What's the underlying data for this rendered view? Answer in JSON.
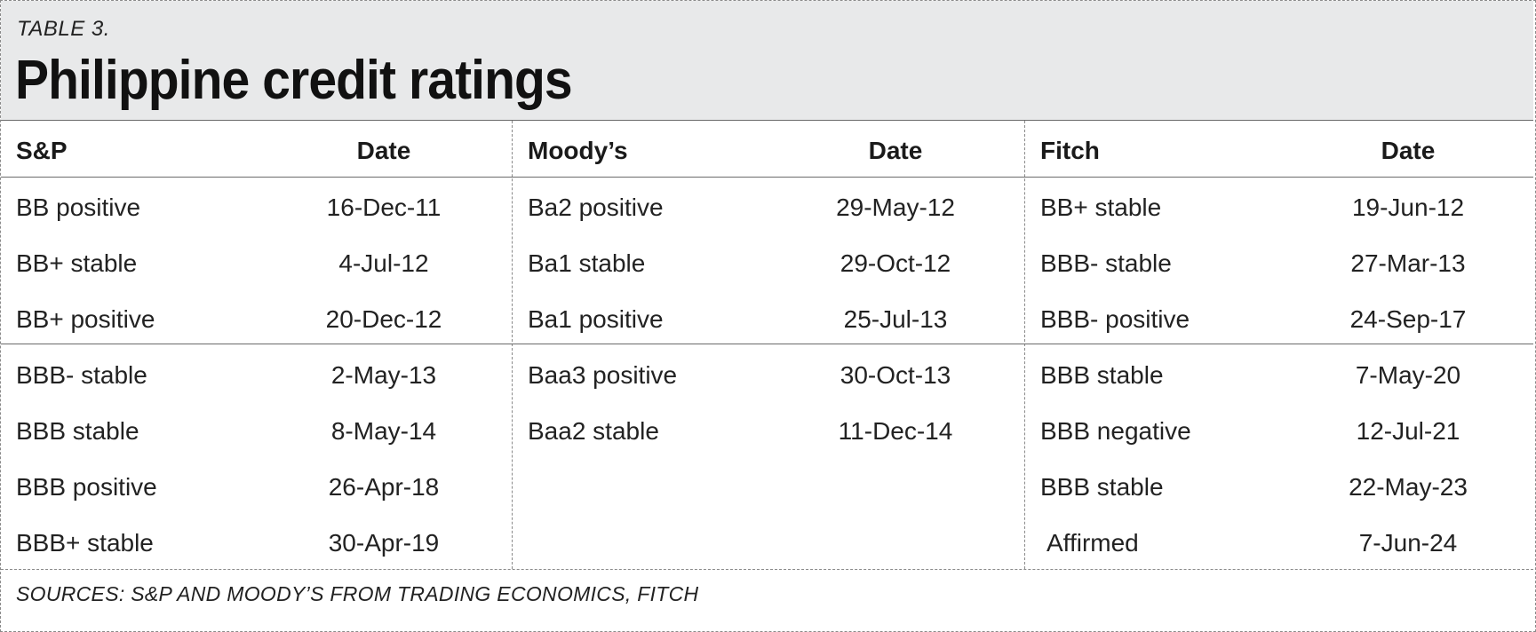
{
  "header": {
    "kicker": "TABLE 3.",
    "title": "Philippine credit ratings"
  },
  "table": {
    "columns": [
      {
        "agency": "S&P",
        "date_header": "Date",
        "rows": [
          {
            "rating": "BB positive",
            "date": "16-Dec-11"
          },
          {
            "rating": "BB+ stable",
            "date": "4-Jul-12"
          },
          {
            "rating": "BB+ positive",
            "date": "20-Dec-12"
          },
          {
            "rating": "BBB- stable",
            "date": "2-May-13"
          },
          {
            "rating": "BBB stable",
            "date": "8-May-14"
          },
          {
            "rating": "BBB positive",
            "date": "26-Apr-18"
          },
          {
            "rating": "BBB+ stable",
            "date": "30-Apr-19"
          }
        ]
      },
      {
        "agency": "Moody’s",
        "date_header": "Date",
        "rows": [
          {
            "rating": "Ba2 positive",
            "date": "29-May-12"
          },
          {
            "rating": "Ba1 stable",
            "date": "29-Oct-12"
          },
          {
            "rating": "Ba1 positive",
            "date": "25-Jul-13"
          },
          {
            "rating": "Baa3 positive",
            "date": "30-Oct-13"
          },
          {
            "rating": "Baa2 stable",
            "date": "11-Dec-14"
          }
        ]
      },
      {
        "agency": "Fitch",
        "date_header": "Date",
        "rows": [
          {
            "rating": "BB+ stable",
            "date": "19-Jun-12"
          },
          {
            "rating": "BBB- stable",
            "date": "27-Mar-13"
          },
          {
            "rating": "BBB- positive",
            "date": "24-Sep-17"
          },
          {
            "rating": "BBB stable",
            "date": "7-May-20"
          },
          {
            "rating": "BBB negative",
            "date": "12-Jul-21"
          },
          {
            "rating": "BBB stable",
            "date": "22-May-23"
          },
          {
            "rating": "Affirmed",
            "date": "7-Jun-24"
          }
        ]
      }
    ]
  },
  "footer": {
    "sources": "SOURCES: S&P AND MOODY’S FROM TRADING ECONOMICS, FITCH"
  }
}
